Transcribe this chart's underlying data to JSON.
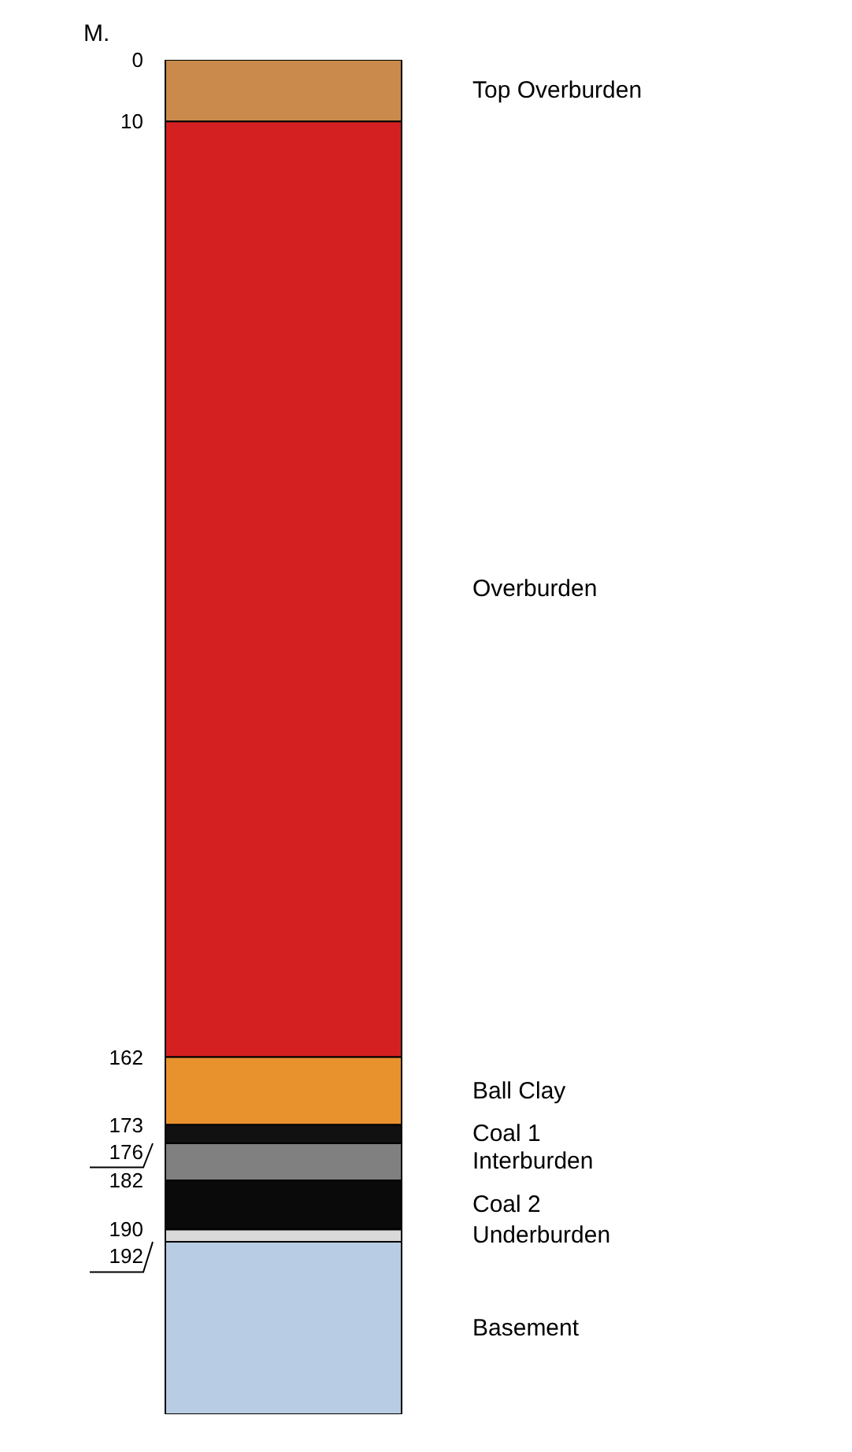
{
  "chart_data": {
    "type": "bar",
    "stacked": true,
    "ylabel": "M.",
    "categories": [
      null
    ],
    "ylim": [
      220,
      0
    ],
    "yticks": [
      0,
      10,
      162,
      173,
      176,
      182,
      190,
      192
    ],
    "series": [
      {
        "name": "Top Overburden",
        "color": "#c98a4b",
        "values": [
          10
        ]
      },
      {
        "name": "Overburden",
        "color": "#d42020",
        "values": [
          152
        ]
      },
      {
        "name": "Ball Clay",
        "color": "#e8922e",
        "values": [
          11
        ]
      },
      {
        "name": "Coal 1",
        "color": "#111111",
        "values": [
          3
        ]
      },
      {
        "name": "Interburden",
        "color": "#808080",
        "values": [
          6
        ]
      },
      {
        "name": "Coal 2",
        "color": "#0a0a0a",
        "values": [
          8
        ]
      },
      {
        "name": "Underburden",
        "color": "#d9d9d9",
        "values": [
          2
        ]
      },
      {
        "name": "Basement",
        "color": "#b8cce4",
        "values": [
          28
        ]
      }
    ],
    "tick_labels": "y",
    "grid": false,
    "legend": false
  }
}
